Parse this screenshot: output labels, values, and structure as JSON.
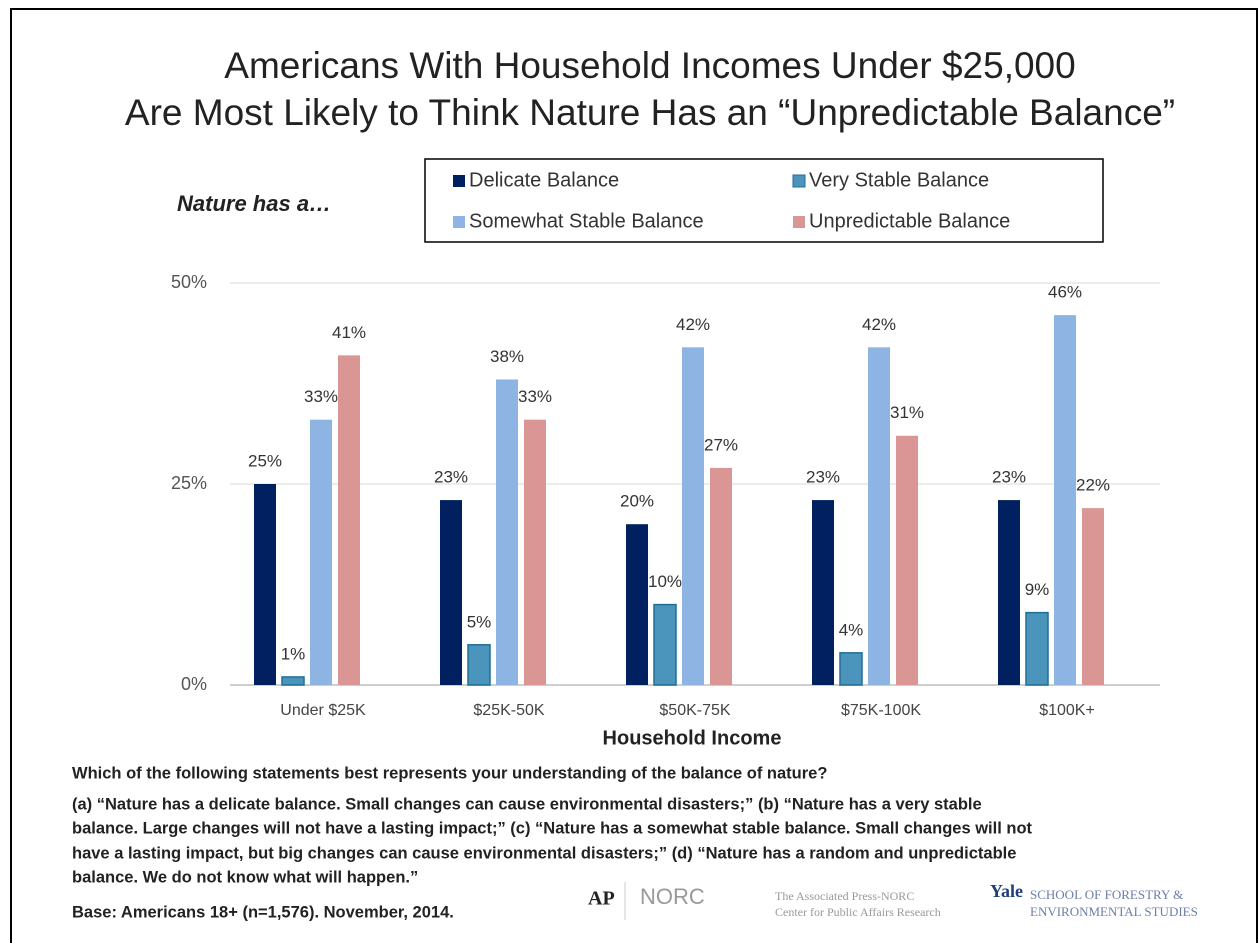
{
  "chart_data": {
    "type": "bar",
    "title": [
      "Americans With Household Incomes Under $25,000",
      "Are Most Likely to Think Nature Has an “Unpredictable Balance”"
    ],
    "subtitle": "Nature has a…",
    "x_label": "Household Income",
    "categories": [
      "Under $25K",
      "$25K-50K",
      "$50K-75K",
      "$75K-100K",
      "$100K+"
    ],
    "series": [
      {
        "name": "Delicate Balance",
        "color": "#002060",
        "values": [
          25,
          23,
          20,
          23,
          23
        ],
        "value_labels": [
          "25%",
          "23%",
          "20%",
          "23%",
          "23%"
        ]
      },
      {
        "name": "Very Stable Balance",
        "color": "#4b94bb",
        "values": [
          1,
          5,
          10,
          4,
          9
        ],
        "value_labels": [
          "1%",
          "5%",
          "10%",
          "4%",
          "9%"
        ]
      },
      {
        "name": "Somewhat Stable Balance",
        "color": "#8eb4e3",
        "values": [
          33,
          38,
          42,
          42,
          46
        ],
        "value_labels": [
          "33%",
          "38%",
          "42%",
          "42%",
          "46%"
        ]
      },
      {
        "name": "Unpredictable Balance",
        "color": "#d99694",
        "values": [
          41,
          33,
          27,
          31,
          22
        ],
        "value_labels": [
          "41%",
          "33%",
          "27%",
          "31%",
          "22%"
        ]
      }
    ],
    "ylim": [
      0,
      50
    ],
    "yticks": [
      {
        "value": 0,
        "label": "0%"
      },
      {
        "value": 25,
        "label": "25%"
      },
      {
        "value": 50,
        "label": "50%"
      }
    ],
    "grid": true,
    "legend": "top",
    "question": "Which of the following statements  best represents  your understanding of the balance of nature?",
    "notes": [
      "(a) “Nature has a delicate balance. Small changes can cause environmental disasters;” (b) “Nature has a very stable",
      "balance. Large changes will not have a lasting impact;” (c) “Nature has a somewhat stable balance. Small changes will not",
      "have a lasting impact, but big changes can cause environmental disasters;” (d) “Nature has a random and unpredictable",
      "balance. We do not know what will happen.”"
    ],
    "base": "Base: Americans 18+ (n=1,576). November, 2014.",
    "logos": {
      "ap": "AP",
      "norc": "NORC",
      "center": [
        "The Associated Press-NORC",
        "Center for Public Affairs Research"
      ],
      "yale": "Yale",
      "school": [
        "SCHOOL OF FORESTRY &",
        "ENVIRONMENTAL STUDIES"
      ]
    }
  }
}
